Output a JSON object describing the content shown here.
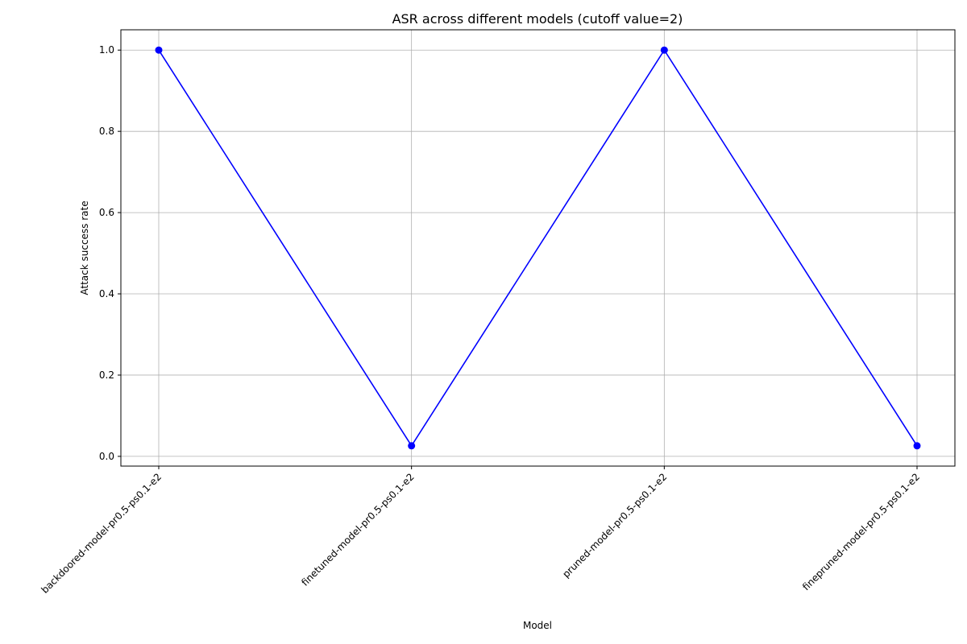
{
  "chart_data": {
    "type": "line",
    "title": "ASR across different models (cutoff value=2)",
    "xlabel": "Model",
    "ylabel": "Attack success rate",
    "categories": [
      "backdoored-model-pr0.5-ps0.1-e2",
      "finetuned-model-pr0.5-ps0.1-e2",
      "pruned-model-pr0.5-ps0.1-e2",
      "finepruned-model-pr0.5-ps0.1-e2"
    ],
    "series": [
      {
        "values": [
          1.0,
          0.026,
          1.0,
          0.026
        ],
        "color": "#0000ff"
      }
    ],
    "ylim": [
      -0.024,
      1.05
    ],
    "yticks": [
      0.0,
      0.2,
      0.4,
      0.6,
      0.8,
      1.0
    ],
    "ytick_labels": [
      "0.0",
      "0.2",
      "0.4",
      "0.6",
      "0.8",
      "1.0"
    ],
    "grid": true,
    "legend": "none",
    "marker": "circle"
  }
}
